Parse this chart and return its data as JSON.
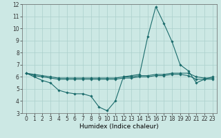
{
  "xlabel": "Humidex (Indice chaleur)",
  "background_color": "#cce8e4",
  "grid_color": "#aacfcb",
  "line_color": "#1a6b6b",
  "x": [
    0,
    1,
    2,
    3,
    4,
    5,
    6,
    7,
    8,
    9,
    10,
    11,
    12,
    13,
    14,
    15,
    16,
    17,
    18,
    19,
    20,
    21,
    22,
    23
  ],
  "y_main": [
    6.3,
    6.0,
    5.7,
    5.5,
    4.9,
    4.7,
    4.6,
    4.6,
    4.4,
    3.5,
    3.2,
    4.0,
    6.0,
    6.1,
    6.2,
    9.3,
    11.8,
    10.4,
    8.9,
    7.0,
    6.5,
    5.5,
    5.8,
    6.0
  ],
  "y_upper": [
    6.3,
    6.2,
    6.1,
    6.0,
    5.9,
    5.9,
    5.9,
    5.9,
    5.9,
    5.9,
    5.9,
    5.9,
    6.0,
    6.0,
    6.1,
    6.1,
    6.2,
    6.2,
    6.3,
    6.3,
    6.3,
    6.0,
    5.9,
    5.9
  ],
  "y_lower": [
    6.3,
    6.1,
    6.0,
    5.9,
    5.8,
    5.8,
    5.8,
    5.8,
    5.8,
    5.8,
    5.8,
    5.8,
    5.9,
    5.9,
    6.0,
    6.0,
    6.1,
    6.1,
    6.2,
    6.2,
    6.1,
    5.8,
    5.8,
    5.8
  ],
  "ylim": [
    3,
    12
  ],
  "yticks": [
    3,
    4,
    5,
    6,
    7,
    8,
    9,
    10,
    11,
    12
  ],
  "xlim_min": -0.5,
  "xlim_max": 23.5,
  "xticks": [
    0,
    1,
    2,
    3,
    4,
    5,
    6,
    7,
    8,
    9,
    10,
    11,
    12,
    13,
    14,
    15,
    16,
    17,
    18,
    19,
    20,
    21,
    22,
    23
  ],
  "xtick_labels": [
    "0",
    "1",
    "2",
    "3",
    "4",
    "5",
    "6",
    "7",
    "8",
    "9",
    "10",
    "11",
    "12",
    "13",
    "14",
    "15",
    "16",
    "17",
    "18",
    "19",
    "20",
    "21",
    "22",
    "23"
  ],
  "markersize": 1.8,
  "linewidth": 0.8,
  "tick_fontsize": 5.5,
  "xlabel_fontsize": 6.5
}
